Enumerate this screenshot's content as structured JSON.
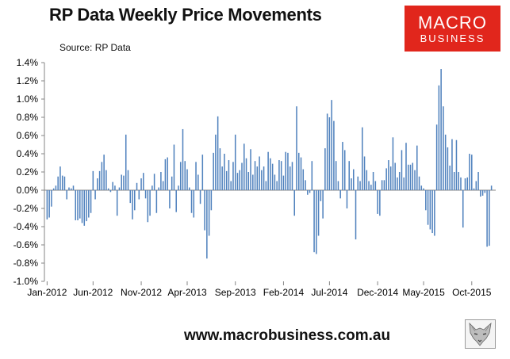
{
  "header": {
    "title": "RP Data Weekly Price Movements",
    "source": "Source: RP Data"
  },
  "logo": {
    "line1": "MACRO",
    "line2": "BUSINESS",
    "color": "#e1261c"
  },
  "footer": {
    "url": "www.macrobusiness.com.au"
  },
  "colors": {
    "bar": "#4f81bd",
    "axis": "#868686",
    "text": "#000000"
  },
  "chart_data": {
    "type": "bar",
    "title": "RP Data Weekly Price Movements",
    "subtitle": "Source: RP Data",
    "xlabel": "",
    "ylabel": "",
    "ylim": [
      -1.0,
      1.4
    ],
    "yticks": [
      -1.0,
      -0.8,
      -0.6,
      -0.4,
      -0.2,
      0.0,
      0.2,
      0.4,
      0.6,
      0.8,
      1.0,
      1.2,
      1.4
    ],
    "ytick_labels": [
      "-1.0%",
      "-0.8%",
      "-0.6%",
      "-0.4%",
      "-0.2%",
      "0.0%",
      "0.2%",
      "0.4%",
      "0.6%",
      "0.8%",
      "1.0%",
      "1.2%",
      "1.4%"
    ],
    "x_tick_labels": [
      "Jan-2012",
      "Jun-2012",
      "Nov-2012",
      "Apr-2013",
      "Sep-2013",
      "Feb-2014",
      "Jul-2014",
      "Dec-2014",
      "May-2015",
      "Oct-2015"
    ],
    "x_tick_index": [
      0,
      21,
      43,
      64,
      86,
      108,
      129,
      151,
      172,
      194
    ],
    "grid": false,
    "legend": "none",
    "series": [
      {
        "values": [
          -0.32,
          -0.3,
          -0.18,
          0.02,
          0.05,
          0.15,
          0.26,
          0.16,
          0.15,
          -0.1,
          0.03,
          0.02,
          0.05,
          -0.33,
          -0.33,
          -0.31,
          -0.36,
          -0.39,
          -0.34,
          -0.3,
          -0.25,
          0.21,
          -0.1,
          0.13,
          0.21,
          0.31,
          0.39,
          0.22,
          0.02,
          -0.02,
          0.09,
          0.05,
          -0.28,
          0.03,
          0.17,
          0.16,
          0.61,
          0.22,
          -0.14,
          -0.32,
          -0.22,
          0.08,
          -0.1,
          0.13,
          0.19,
          -0.09,
          -0.35,
          -0.28,
          0.05,
          0.18,
          -0.25,
          0.03,
          0.2,
          0.1,
          0.34,
          0.36,
          -0.2,
          0.15,
          0.5,
          -0.24,
          0.05,
          0.31,
          0.67,
          0.32,
          0.23,
          0.03,
          -0.25,
          -0.3,
          0.31,
          0.17,
          -0.15,
          0.39,
          -0.44,
          -0.75,
          -0.5,
          -0.22,
          0.41,
          0.61,
          0.81,
          0.46,
          0.26,
          0.4,
          0.21,
          0.33,
          0.1,
          0.31,
          0.61,
          0.19,
          0.22,
          0.3,
          0.51,
          0.35,
          0.2,
          0.45,
          0.17,
          0.32,
          0.26,
          0.37,
          0.22,
          0.26,
          0.1,
          0.42,
          0.35,
          0.29,
          0.17,
          0.1,
          0.33,
          0.32,
          0.16,
          0.42,
          0.41,
          0.26,
          0.31,
          -0.28,
          0.92,
          0.41,
          0.36,
          0.23,
          0.11,
          -0.05,
          -0.03,
          0.32,
          -0.68,
          -0.7,
          -0.5,
          -0.12,
          -0.31,
          0.46,
          0.84,
          0.8,
          0.99,
          0.76,
          0.32,
          0.1,
          -0.09,
          0.53,
          0.44,
          -0.2,
          0.32,
          0.13,
          0.23,
          -0.54,
          0.15,
          0.1,
          0.69,
          0.37,
          0.22,
          0.1,
          0.06,
          0.2,
          0.1,
          -0.26,
          -0.28,
          0.11,
          0.11,
          0.24,
          0.33,
          0.26,
          0.58,
          0.3,
          0.14,
          0.2,
          0.44,
          0.14,
          0.52,
          0.28,
          0.28,
          0.3,
          0.22,
          0.49,
          0.15,
          0.05,
          0.02,
          -0.22,
          -0.38,
          -0.43,
          -0.47,
          -0.5,
          0.72,
          1.15,
          1.33,
          0.92,
          0.61,
          0.47,
          0.27,
          0.56,
          0.2,
          0.55,
          0.2,
          0.14,
          -0.41,
          0.13,
          0.14,
          0.4,
          0.39,
          0.02,
          0.1,
          0.2,
          -0.07,
          -0.06,
          -0.03,
          -0.62,
          -0.61,
          0.05
        ]
      }
    ]
  }
}
